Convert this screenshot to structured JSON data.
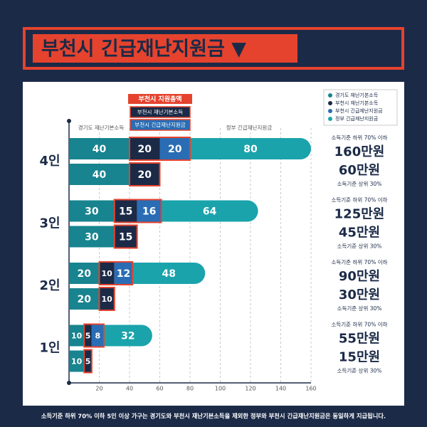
{
  "chart_data": {
    "type": "bar",
    "orientation": "horizontal",
    "stacked": true,
    "title": "부천시 긴급재난지원금 ▼",
    "categories": [
      "4인",
      "3인",
      "2인",
      "1인"
    ],
    "series": [
      {
        "name": "경기도 재난기본소득",
        "color": "#17848f",
        "values": [
          40,
          30,
          20,
          10
        ],
        "values_upper": [
          40,
          30,
          20,
          10
        ]
      },
      {
        "name": "부천시 재난기본소득",
        "color": "#1b2a47",
        "values": [
          20,
          15,
          10,
          5
        ],
        "values_upper": [
          20,
          15,
          10,
          5
        ]
      },
      {
        "name": "부천시 긴급재난지원금",
        "color": "#2a6db5",
        "values": [
          20,
          16,
          12,
          8
        ],
        "values_upper": [
          null,
          null,
          null,
          null
        ]
      },
      {
        "name": "정부 긴급재난지원금",
        "color": "#1ba3ac",
        "values": [
          80,
          64,
          48,
          32
        ],
        "values_upper": [
          null,
          null,
          null,
          null
        ]
      }
    ],
    "bucheon_total_label": "부천시 지원총액",
    "income_lower": "소득기준 하위 70% 이하",
    "income_upper": "소득기준 상위 30%",
    "totals": {
      "lower": {
        "values": [
          160,
          125,
          90,
          55
        ],
        "value_labels": [
          "160만원",
          "125만원",
          "90만원",
          "55만원"
        ]
      },
      "upper": {
        "values": [
          60,
          45,
          30,
          15
        ],
        "value_labels": [
          "60만원",
          "45만원",
          "30만원",
          "15만원"
        ]
      }
    },
    "xlim": [
      0,
      160
    ],
    "xticks": [
      20,
      40,
      60,
      80,
      100,
      120,
      140,
      160
    ],
    "grid": true,
    "legend": "top-right",
    "footnote": "소득기준 하위 70% 이하 5인 이상 가구는 경기도와 부천시 재난기본소득을 제외한 정부와 부천시 긴급재난지원금은 동일하게 지급됩니다."
  }
}
